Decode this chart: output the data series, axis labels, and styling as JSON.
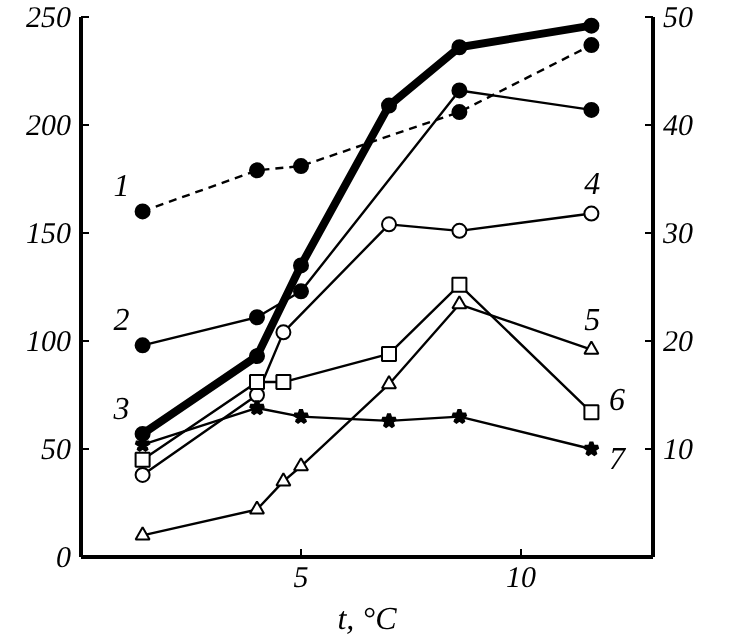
{
  "chart_data": {
    "type": "line",
    "xlabel": "t, °C",
    "xlim": [
      0,
      13
    ],
    "xticks": [
      5,
      10
    ],
    "ylim": [
      0,
      250
    ],
    "yticks": [
      0,
      50,
      100,
      150,
      200,
      250
    ],
    "y2lim": [
      0,
      50
    ],
    "y2ticks": [
      10,
      20,
      30,
      40,
      50
    ],
    "grid": false,
    "series": [
      {
        "name": "1",
        "color": "#000000",
        "line_style": "dashed",
        "marker": "circle",
        "x": [
          1.4,
          4.0,
          5.0,
          8.6,
          11.6
        ],
        "values": [
          160,
          179,
          181,
          206,
          237
        ]
      },
      {
        "name": "2",
        "color": "#000000",
        "line_style": "solid",
        "marker": "circle",
        "x": [
          1.4,
          4.0,
          5.0,
          8.6,
          11.6
        ],
        "values": [
          98,
          111,
          123,
          216,
          207
        ]
      },
      {
        "name": "3",
        "color": "#000000",
        "line_style": "solid",
        "marker": "circle",
        "x": [
          1.4,
          4.0,
          5.0,
          7.0,
          8.6,
          11.6
        ],
        "values": [
          57,
          93,
          135,
          209,
          236,
          246
        ]
      },
      {
        "name": "4",
        "color": "#000000",
        "line_style": "solid",
        "marker": "circle",
        "x": [
          1.4,
          4.0,
          4.6,
          7.0,
          8.6,
          11.6
        ],
        "values": [
          38,
          75,
          104,
          154,
          151,
          159
        ]
      },
      {
        "name": "5",
        "color": "#000000",
        "line_style": "solid",
        "marker": "triangle",
        "x": [
          1.4,
          4.0,
          4.6,
          5.0,
          7.0,
          8.6,
          11.6
        ],
        "values": [
          10,
          22,
          35,
          42,
          80,
          117,
          96
        ]
      },
      {
        "name": "6",
        "color": "#000000",
        "line_style": "solid",
        "marker": "square",
        "x": [
          1.4,
          4.0,
          4.6,
          7.0,
          8.6,
          11.6
        ],
        "values": [
          45,
          81,
          81,
          94,
          126,
          67
        ]
      },
      {
        "name": "7",
        "color": "#000000",
        "line_style": "solid",
        "marker": "star",
        "x": [
          1.4,
          4.0,
          5.0,
          7.0,
          8.6,
          11.6
        ],
        "values": [
          52,
          69,
          65,
          63,
          65,
          50
        ]
      }
    ]
  }
}
